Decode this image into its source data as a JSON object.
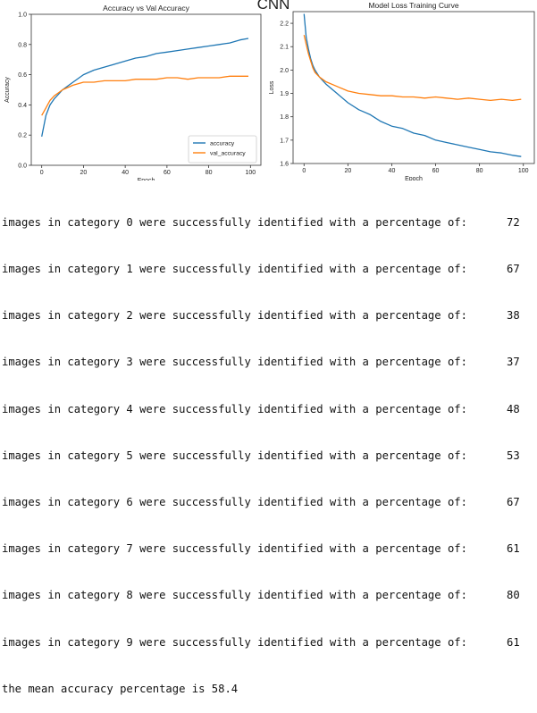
{
  "header": {
    "title": "CNN"
  },
  "chart_data": [
    {
      "type": "line",
      "title": "Accuracy vs Val Accuracy",
      "xlabel": "Epoch",
      "ylabel": "Accuracy",
      "xlim": [
        -5,
        105
      ],
      "ylim": [
        0.0,
        1.0
      ],
      "xticks": [
        0,
        20,
        40,
        60,
        80,
        100
      ],
      "yticks": [
        0.0,
        0.2,
        0.4,
        0.6,
        0.8,
        1.0
      ],
      "grid": false,
      "legend_position": "bottom-right",
      "series": [
        {
          "name": "accuracy",
          "color": "#1f77b4",
          "x": [
            0,
            2,
            4,
            6,
            8,
            10,
            15,
            20,
            25,
            30,
            35,
            40,
            45,
            50,
            55,
            60,
            65,
            70,
            75,
            80,
            85,
            90,
            95,
            99
          ],
          "y": [
            0.19,
            0.33,
            0.4,
            0.44,
            0.47,
            0.5,
            0.55,
            0.6,
            0.63,
            0.65,
            0.67,
            0.69,
            0.71,
            0.72,
            0.74,
            0.75,
            0.76,
            0.77,
            0.78,
            0.79,
            0.8,
            0.81,
            0.83,
            0.84
          ]
        },
        {
          "name": "val_accuracy",
          "color": "#ff7f0e",
          "x": [
            0,
            2,
            4,
            6,
            8,
            10,
            15,
            20,
            25,
            30,
            35,
            40,
            45,
            50,
            55,
            60,
            65,
            70,
            75,
            80,
            85,
            90,
            95,
            99
          ],
          "y": [
            0.33,
            0.38,
            0.43,
            0.46,
            0.48,
            0.5,
            0.53,
            0.55,
            0.55,
            0.56,
            0.56,
            0.56,
            0.57,
            0.57,
            0.57,
            0.58,
            0.58,
            0.57,
            0.58,
            0.58,
            0.58,
            0.59,
            0.59,
            0.59
          ]
        }
      ]
    },
    {
      "type": "line",
      "title": "Model Loss Training Curve",
      "xlabel": "Epoch",
      "ylabel": "Loss",
      "xlim": [
        -5,
        105
      ],
      "ylim": [
        1.6,
        2.25
      ],
      "xticks": [
        0,
        20,
        40,
        60,
        80,
        100
      ],
      "yticks": [
        1.6,
        1.7,
        1.8,
        1.9,
        2.0,
        2.1,
        2.2
      ],
      "grid": false,
      "series": [
        {
          "color": "#1f77b4",
          "x": [
            0,
            1,
            2,
            3,
            4,
            5,
            7,
            10,
            15,
            20,
            25,
            30,
            35,
            40,
            45,
            50,
            55,
            60,
            65,
            70,
            75,
            80,
            85,
            90,
            95,
            99
          ],
          "y": [
            2.24,
            2.14,
            2.09,
            2.05,
            2.02,
            2.0,
            1.97,
            1.94,
            1.9,
            1.86,
            1.83,
            1.81,
            1.78,
            1.76,
            1.75,
            1.73,
            1.72,
            1.7,
            1.69,
            1.68,
            1.67,
            1.66,
            1.65,
            1.645,
            1.635,
            1.63
          ]
        },
        {
          "color": "#ff7f0e",
          "x": [
            0,
            1,
            2,
            3,
            4,
            5,
            7,
            10,
            15,
            20,
            25,
            30,
            35,
            40,
            45,
            50,
            55,
            60,
            65,
            70,
            75,
            80,
            85,
            90,
            95,
            99
          ],
          "y": [
            2.15,
            2.11,
            2.07,
            2.04,
            2.01,
            1.99,
            1.97,
            1.95,
            1.93,
            1.91,
            1.9,
            1.895,
            1.89,
            1.89,
            1.885,
            1.885,
            1.88,
            1.885,
            1.88,
            1.875,
            1.88,
            1.875,
            1.87,
            1.875,
            1.87,
            1.875
          ]
        }
      ]
    }
  ],
  "output": {
    "rows": [
      {
        "text": "images in category 0 were successfully identified with a percentage of:",
        "value": "72"
      },
      {
        "text": "images in category 1 were successfully identified with a percentage of:",
        "value": "67"
      },
      {
        "text": "images in category 2 were successfully identified with a percentage of:",
        "value": "38"
      },
      {
        "text": "images in category 3 were successfully identified with a percentage of:",
        "value": "37"
      },
      {
        "text": "images in category 4 were successfully identified with a percentage of:",
        "value": "48"
      },
      {
        "text": "images in category 5 were successfully identified with a percentage of:",
        "value": "53"
      },
      {
        "text": "images in category 6 were successfully identified with a percentage of:",
        "value": "67"
      },
      {
        "text": "images in category 7 were successfully identified with a percentage of:",
        "value": "61"
      },
      {
        "text": "images in category 8 were successfully identified with a percentage of:",
        "value": "80"
      },
      {
        "text": "images in category 9 were successfully identified with a percentage of:",
        "value": "61"
      }
    ],
    "summary": "the mean accuracy percentage is 58.4"
  }
}
